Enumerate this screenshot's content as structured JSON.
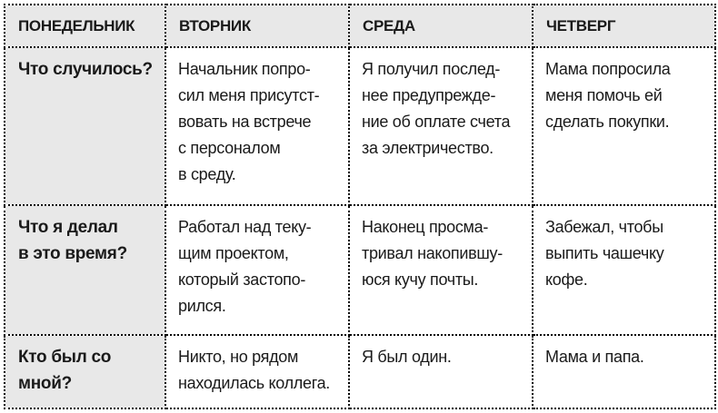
{
  "colors": {
    "header_bg": "#e8e8e8",
    "cell_bg": "#ffffff",
    "border": "#000000",
    "text": "#1a1a1a",
    "page_bg": "#ffffff"
  },
  "table": {
    "headers": [
      "ПОНЕДЕЛЬНИК",
      "ВТОРНИК",
      "СРЕДА",
      "ЧЕТВЕРГ"
    ],
    "rows": [
      {
        "label": "Что случилось?",
        "cells": [
          "Начальник попро-\nсил меня присутст-\nвовать на встрече\nс персоналом\nв среду.",
          "Я получил послед-\nнее предупрежде-\nние об оплате счета\nза электричество.",
          "Мама попросила\nменя помочь ей\nсделать покупки."
        ]
      },
      {
        "label": "Что я делал\nв это время?",
        "cells": [
          "Работал над теку-\nщим проектом,\nкоторый застопо-\nрился.",
          "Наконец просма-\nтривал накопившу-\nюся кучу почты.",
          "Забежал, чтобы\nвыпить чашечку\nкофе."
        ]
      },
      {
        "label": "Кто был со\nмной?",
        "cells": [
          "Никто, но рядом\nнаходилась коллега.",
          "Я был один.",
          "Мама и папа."
        ]
      }
    ]
  }
}
